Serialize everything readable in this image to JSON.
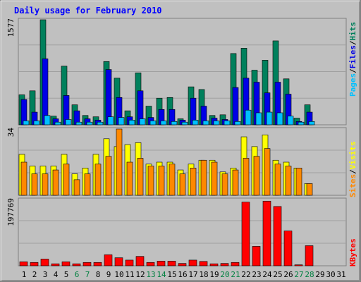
{
  "chart_data": [
    {
      "type": "bar",
      "title": "Daily usage for February 2010",
      "panel": "hits-files-pages",
      "ymax_label": "1577",
      "side_label": [
        "Pages",
        "Files",
        "Hits"
      ],
      "categories": [
        "1",
        "2",
        "3",
        "4",
        "5",
        "6",
        "7",
        "8",
        "9",
        "10",
        "11",
        "12",
        "13",
        "14",
        "15",
        "16",
        "17",
        "18",
        "19",
        "20",
        "21",
        "22",
        "23",
        "24",
        "25",
        "26",
        "27",
        "28",
        "29",
        "30",
        "31"
      ],
      "weekend_days": [
        6,
        7,
        13,
        14,
        20,
        21,
        27,
        28
      ],
      "series": [
        {
          "name": "Hits",
          "color": "#00805c",
          "values": [
            450,
            510,
            1577,
            130,
            880,
            300,
            140,
            120,
            950,
            700,
            210,
            780,
            280,
            400,
            410,
            90,
            570,
            530,
            140,
            150,
            1070,
            1150,
            820,
            970,
            1260,
            690,
            100,
            300,
            0,
            0,
            0
          ]
        },
        {
          "name": "Files",
          "color": "#0000e6",
          "values": [
            380,
            190,
            990,
            90,
            440,
            210,
            90,
            70,
            830,
            410,
            120,
            510,
            110,
            230,
            230,
            70,
            400,
            280,
            100,
            80,
            560,
            700,
            640,
            480,
            640,
            460,
            50,
            190,
            0,
            0,
            0
          ]
        },
        {
          "name": "Pages",
          "color": "#00c0ff",
          "values": [
            60,
            60,
            140,
            40,
            80,
            40,
            40,
            40,
            120,
            110,
            70,
            90,
            60,
            60,
            50,
            40,
            70,
            60,
            60,
            60,
            50,
            220,
            180,
            190,
            180,
            130,
            40,
            50,
            0,
            0,
            0
          ]
        }
      ]
    },
    {
      "type": "bar",
      "panel": "visits-sites",
      "ymax_label": "34",
      "side_label": [
        "Sites",
        "Visits"
      ],
      "categories": [
        "1",
        "2",
        "3",
        "4",
        "5",
        "6",
        "7",
        "8",
        "9",
        "10",
        "11",
        "12",
        "13",
        "14",
        "15",
        "16",
        "17",
        "18",
        "19",
        "20",
        "21",
        "22",
        "23",
        "24",
        "25",
        "26",
        "27",
        "28",
        "29",
        "30",
        "31"
      ],
      "series": [
        {
          "name": "Visits",
          "color": "#ffff00",
          "values": [
            21,
            15,
            15,
            15,
            21,
            11,
            14,
            21,
            29,
            25,
            26,
            27,
            16,
            17,
            17,
            13,
            16,
            18,
            18,
            12,
            14,
            30,
            25,
            31,
            18,
            17,
            14,
            6,
            0,
            0,
            0
          ]
        },
        {
          "name": "Sites",
          "color": "#ff8800",
          "values": [
            17,
            11,
            11,
            13,
            16,
            8,
            11,
            16,
            20,
            34,
            17,
            19,
            15,
            15,
            16,
            11,
            14,
            18,
            17,
            11,
            13,
            19,
            20,
            24,
            16,
            15,
            14,
            6,
            0,
            0,
            0
          ]
        }
      ]
    },
    {
      "type": "bar",
      "panel": "kbytes",
      "ymax_label": "197769",
      "side_label": [
        "KBytes"
      ],
      "categories": [
        "1",
        "2",
        "3",
        "4",
        "5",
        "6",
        "7",
        "8",
        "9",
        "10",
        "11",
        "12",
        "13",
        "14",
        "15",
        "16",
        "17",
        "18",
        "19",
        "20",
        "21",
        "22",
        "23",
        "24",
        "25",
        "26",
        "27",
        "28",
        "29",
        "30",
        "31"
      ],
      "series": [
        {
          "name": "KBytes",
          "color": "#ff0000",
          "values": [
            12000,
            10000,
            20000,
            6000,
            12000,
            6000,
            10000,
            10000,
            33000,
            24000,
            17000,
            28000,
            10000,
            14000,
            14000,
            7000,
            17000,
            13000,
            6000,
            7000,
            10000,
            190000,
            58000,
            193000,
            177000,
            104000,
            3000,
            60000,
            0,
            0,
            0
          ]
        }
      ]
    }
  ]
}
